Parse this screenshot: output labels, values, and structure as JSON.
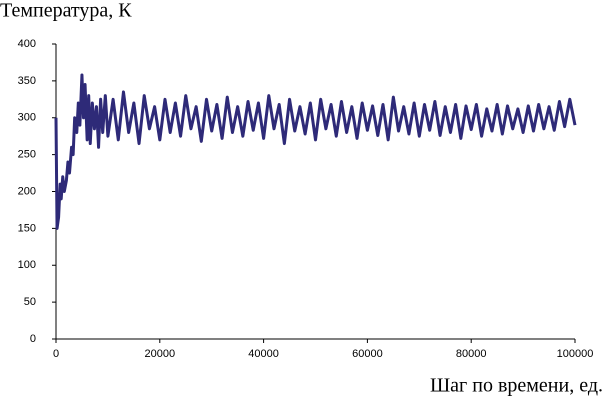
{
  "chart_data": {
    "type": "line",
    "ylabel": "Температура, К",
    "xlabel": "Шаг по времени, ед.",
    "xlim": [
      0,
      100000
    ],
    "xticks": [
      0,
      20000,
      40000,
      60000,
      80000,
      100000
    ],
    "ylim": [
      0,
      400
    ],
    "yticks": [
      0,
      50,
      100,
      150,
      200,
      250,
      300,
      350,
      400
    ],
    "grid": false,
    "series": [
      {
        "color": "#2e2a78",
        "x": [
          0,
          200,
          500,
          800,
          1000,
          1300,
          1600,
          2000,
          2300,
          2600,
          3000,
          3300,
          3600,
          4000,
          4300,
          4600,
          5000,
          5300,
          5600,
          6000,
          6300,
          6600,
          7000,
          7400,
          7800,
          8200,
          8600,
          9000,
          9500,
          10000,
          11000,
          12000,
          13000,
          14000,
          15000,
          16000,
          17000,
          18000,
          19000,
          20000,
          21000,
          22000,
          23000,
          24000,
          25000,
          26000,
          27000,
          28000,
          29000,
          30000,
          31000,
          32000,
          33000,
          34000,
          35000,
          36000,
          37000,
          38000,
          39000,
          40000,
          41000,
          42000,
          43000,
          44000,
          45000,
          46000,
          47000,
          48000,
          49000,
          50000,
          51000,
          52000,
          53000,
          54000,
          55000,
          56000,
          57000,
          58000,
          59000,
          60000,
          61000,
          62000,
          63000,
          64000,
          65000,
          66000,
          67000,
          68000,
          69000,
          70000,
          71000,
          72000,
          73000,
          74000,
          75000,
          76000,
          77000,
          78000,
          79000,
          80000,
          81000,
          82000,
          83000,
          84000,
          85000,
          86000,
          87000,
          88000,
          89000,
          90000,
          91000,
          92000,
          93000,
          94000,
          95000,
          96000,
          97000,
          98000,
          99000,
          100000
        ],
        "values": [
          300,
          150,
          165,
          210,
          190,
          220,
          200,
          215,
          240,
          225,
          260,
          250,
          300,
          280,
          320,
          290,
          358,
          300,
          345,
          270,
          330,
          265,
          320,
          285,
          315,
          260,
          325,
          280,
          330,
          275,
          325,
          270,
          335,
          280,
          320,
          265,
          330,
          285,
          315,
          270,
          325,
          280,
          320,
          275,
          330,
          285,
          315,
          268,
          325,
          282,
          318,
          272,
          328,
          280,
          315,
          275,
          322,
          283,
          320,
          272,
          330,
          285,
          318,
          265,
          325,
          282,
          315,
          278,
          320,
          270,
          325,
          285,
          318,
          275,
          322,
          280,
          315,
          272,
          320,
          283,
          316,
          276,
          318,
          270,
          328,
          282,
          315,
          278,
          320,
          275,
          318,
          283,
          322,
          276,
          315,
          280,
          318,
          272,
          316,
          284,
          318,
          275,
          312,
          282,
          318,
          278,
          316,
          285,
          312,
          280,
          316,
          282,
          318,
          285,
          315,
          283,
          322,
          288,
          325,
          290
        ]
      }
    ]
  }
}
